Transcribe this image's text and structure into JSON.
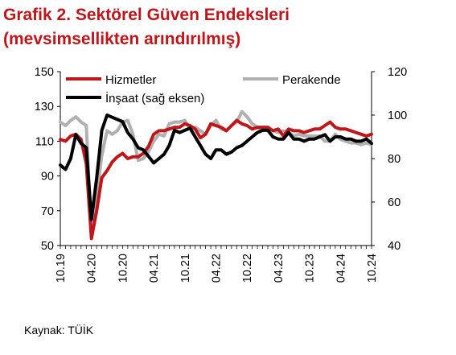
{
  "title_line1": "Grafik 2. Sektörel Güven Endeksleri",
  "title_line2": "(mevsimsellikten arındırılmış)",
  "source": "Kaynak: TÜİK",
  "chart_data": {
    "type": "line",
    "x": [
      "10.19",
      "11.19",
      "12.19",
      "01.20",
      "02.20",
      "03.20",
      "04.20",
      "05.20",
      "06.20",
      "07.20",
      "08.20",
      "09.20",
      "10.20",
      "11.20",
      "12.20",
      "01.21",
      "02.21",
      "03.21",
      "04.21",
      "05.21",
      "06.21",
      "07.21",
      "08.21",
      "09.21",
      "10.21",
      "11.21",
      "12.21",
      "01.22",
      "02.22",
      "03.22",
      "04.22",
      "05.22",
      "06.22",
      "07.22",
      "08.22",
      "09.22",
      "10.22",
      "11.22",
      "12.22",
      "01.23",
      "02.23",
      "03.23",
      "04.23",
      "05.23",
      "06.23",
      "07.23",
      "08.23",
      "09.23",
      "10.23",
      "11.23",
      "12.23",
      "01.24",
      "02.24",
      "03.24",
      "04.24",
      "05.24",
      "06.24",
      "07.24",
      "08.24",
      "09.24",
      "10.24"
    ],
    "xticks": [
      "10.19",
      "04.20",
      "10.20",
      "04.21",
      "10.21",
      "04.22",
      "10.22",
      "04.23",
      "10.23",
      "04.24",
      "10.24"
    ],
    "series": [
      {
        "name": "Hizmetler",
        "axis": "left",
        "color": "#c0161b",
        "values": [
          111,
          110,
          113,
          114,
          111,
          97,
          54,
          70,
          89,
          93,
          98,
          101,
          103,
          100,
          101,
          101,
          103,
          107,
          114,
          116,
          116,
          117,
          118,
          118,
          120,
          119,
          117,
          112,
          114,
          120,
          119,
          118,
          116,
          119,
          122,
          120,
          119,
          117,
          118,
          118,
          118,
          116,
          117,
          113,
          117,
          116,
          116,
          115,
          116,
          117,
          117,
          119,
          121,
          118,
          117,
          117,
          116,
          115,
          114,
          113,
          114
        ]
      },
      {
        "name": "Perakende",
        "axis": "left",
        "color": "#b0b0b0",
        "values": [
          121,
          119,
          122,
          124,
          121,
          119,
          57,
          78,
          102,
          116,
          114,
          116,
          121,
          122,
          114,
          99,
          100,
          104,
          110,
          114,
          113,
          120,
          121,
          121,
          122,
          117,
          118,
          116,
          114,
          119,
          122,
          117,
          116,
          119,
          121,
          127,
          124,
          120,
          118,
          116,
          118,
          116,
          115,
          116,
          115,
          113,
          114,
          113,
          113,
          113,
          113,
          110,
          110,
          114,
          111,
          110,
          109,
          109,
          108,
          109,
          108
        ]
      },
      {
        "name": "İnşaat (sağ eksen)",
        "axis": "right",
        "color": "#000000",
        "values": [
          77,
          75,
          80,
          91,
          87,
          85,
          52,
          71,
          93,
          100,
          99,
          98,
          97,
          92,
          89,
          85,
          84,
          81,
          78,
          80,
          82,
          86,
          93,
          92,
          93,
          94,
          90,
          86,
          82,
          80,
          84,
          84,
          82,
          83,
          85,
          86,
          88,
          90,
          92,
          93,
          93,
          90,
          89,
          89,
          92,
          89,
          89,
          88,
          89,
          89,
          90,
          91,
          88,
          90,
          90,
          89,
          89,
          88,
          88,
          89,
          87
        ]
      }
    ],
    "ylim_left": [
      50,
      150
    ],
    "yticks_left": [
      50,
      70,
      90,
      110,
      130,
      150
    ],
    "ylim_right": [
      40,
      120
    ],
    "yticks_right": [
      40,
      60,
      80,
      100,
      120
    ],
    "legend": [
      "Hizmetler",
      "Perakende",
      "İnşaat (sağ eksen)"
    ],
    "grid": false
  }
}
